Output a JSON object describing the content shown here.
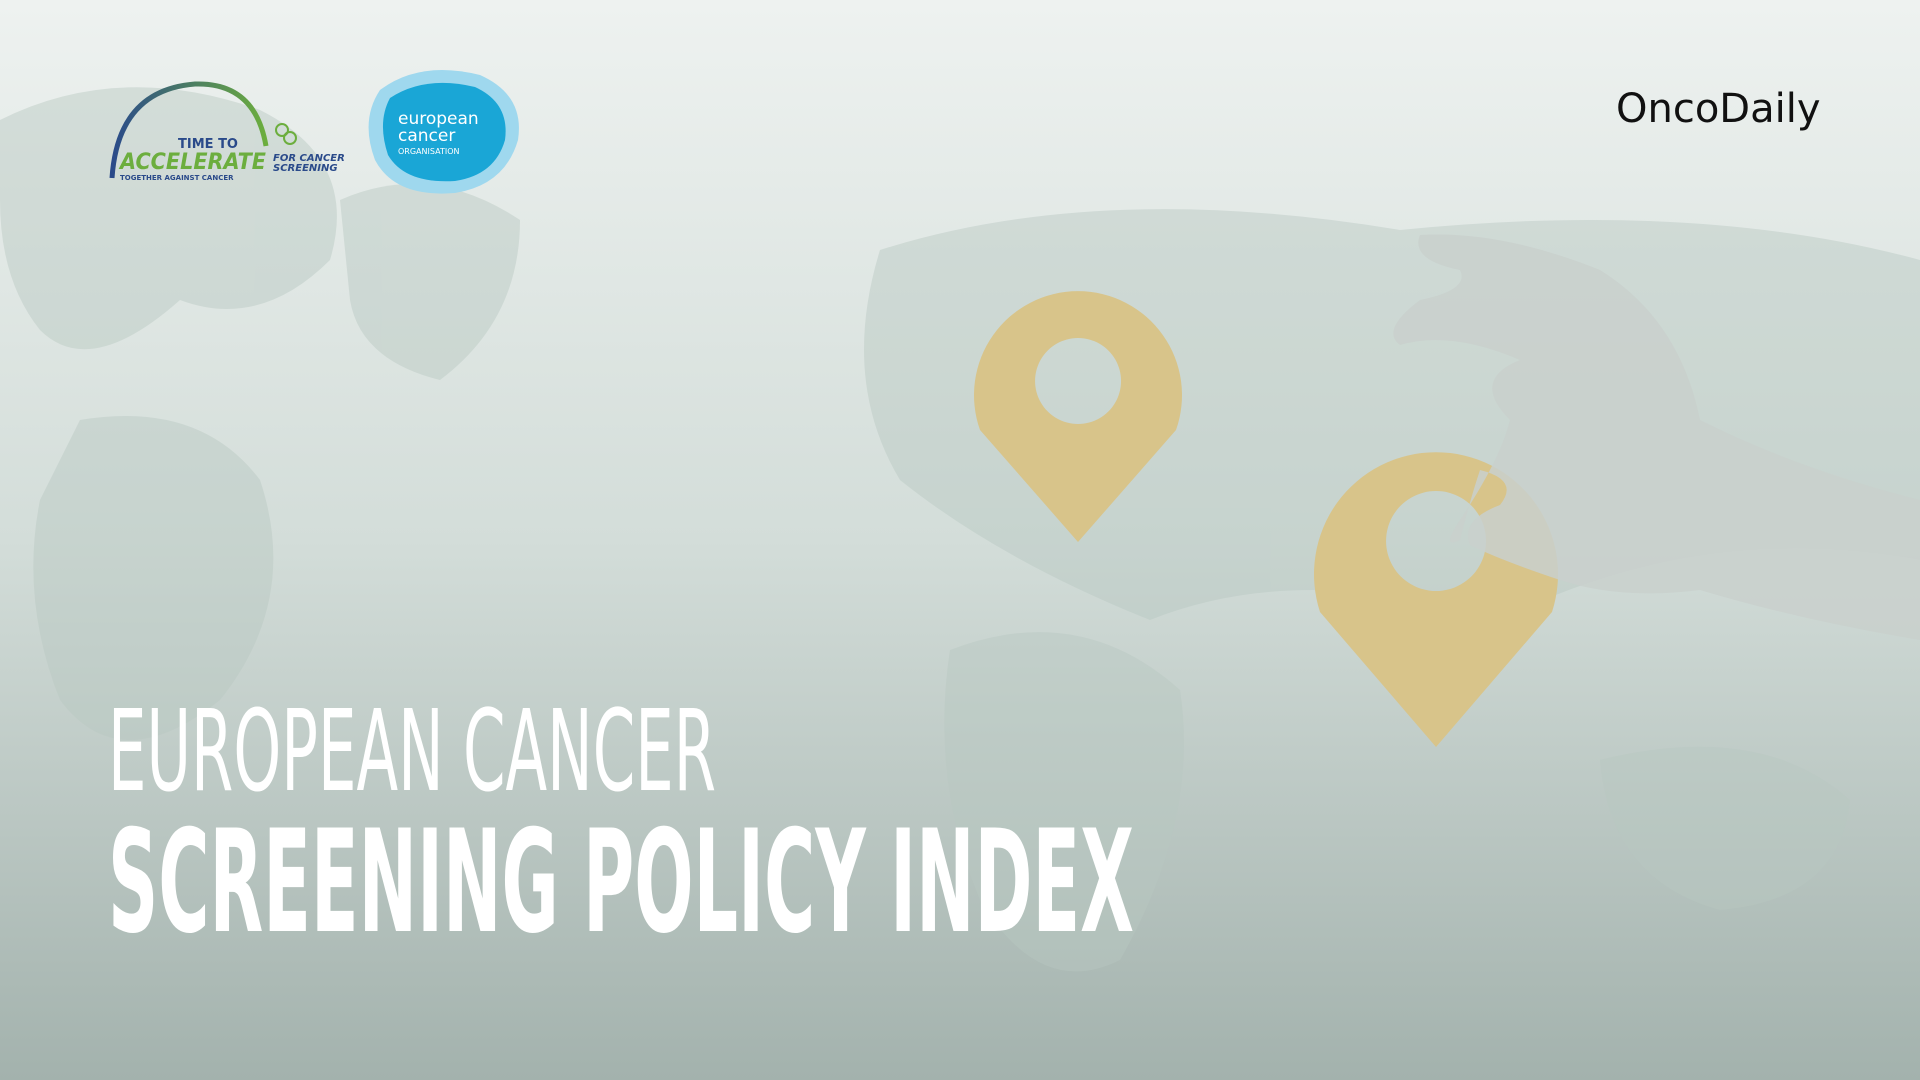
{
  "logos": {
    "accelerate": {
      "line1": "TIME TO",
      "line2": "ACCELERATE",
      "side": [
        "FOR CANCER",
        "SCREENING"
      ],
      "tagline": "TOGETHER AGAINST CANCER"
    },
    "eco": {
      "lines": [
        "european",
        "cancer"
      ],
      "sub": "ORGANISATION"
    }
  },
  "brand": "OncoDaily",
  "title": {
    "line1": "EUROPEAN CANCER",
    "line2": "SCREENING POLICY INDEX"
  }
}
